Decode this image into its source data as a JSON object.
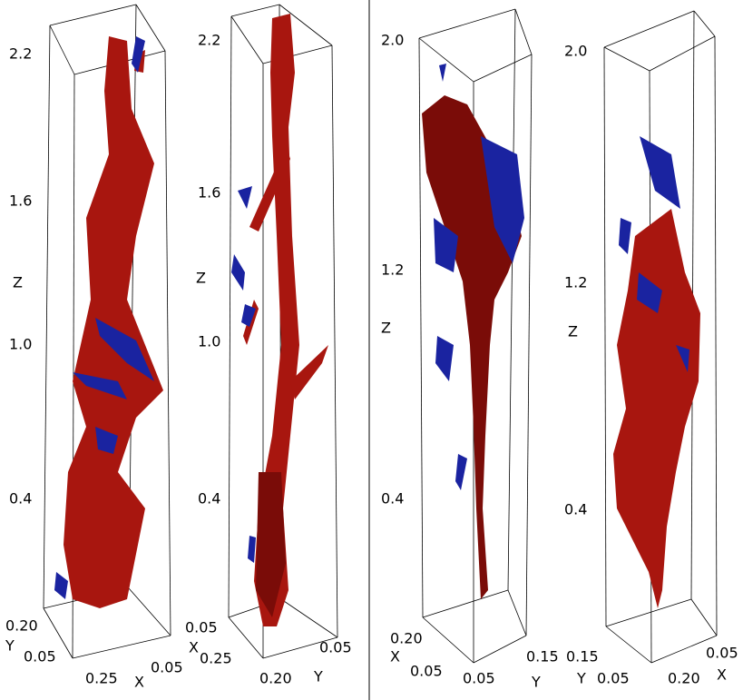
{
  "panels": [
    {
      "z_ticks": [
        "2.2",
        "1.6",
        "1.0",
        "0.4"
      ],
      "z_label": "Z",
      "base_labels": [
        "0.20",
        "Y",
        "0.05",
        "0.25",
        "X",
        "0.05"
      ]
    },
    {
      "z_ticks": [
        "2.2",
        "1.6",
        "1.0",
        "0.4"
      ],
      "z_label": "Z",
      "base_labels": [
        "0.05",
        "X",
        "0.25",
        "0.20",
        "Y",
        "0.05"
      ]
    },
    {
      "z_ticks": [
        "2.0",
        "1.2",
        "0.4"
      ],
      "z_label": "Z",
      "base_labels": [
        "0.20",
        "X",
        "0.05",
        "0.05",
        "Y",
        "0.15"
      ]
    },
    {
      "z_ticks": [
        "2.0",
        "1.2",
        "0.4"
      ],
      "z_label": "Z",
      "base_labels": [
        "0.15",
        "Y",
        "0.05",
        "0.20",
        "X",
        "0.05"
      ]
    }
  ]
}
